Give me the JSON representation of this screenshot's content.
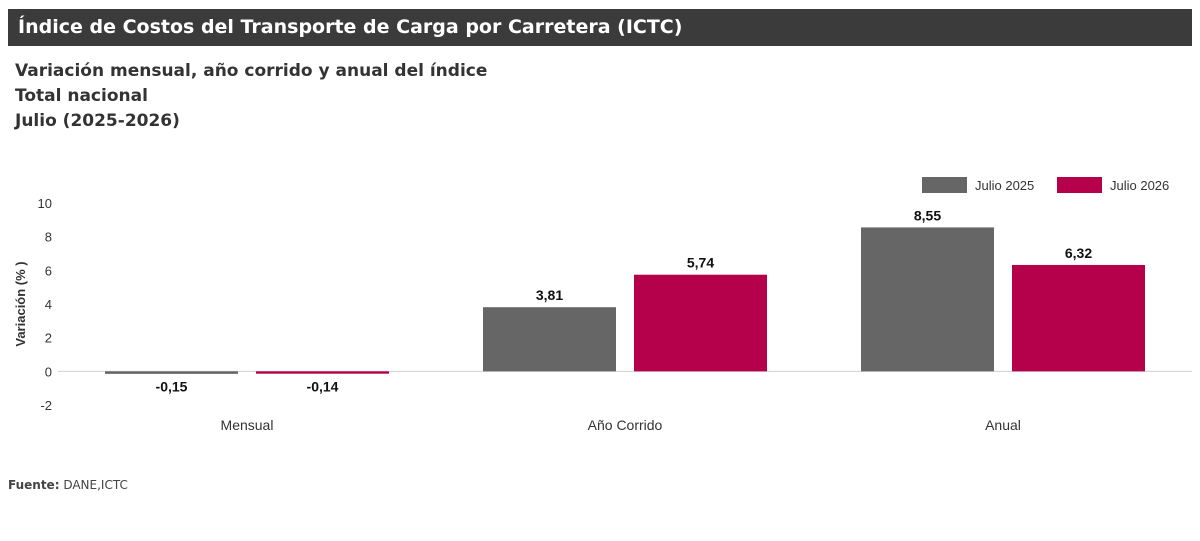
{
  "header": {
    "title": "Índice de Costos del Transporte de Carga por Carretera (ICTC)",
    "subtitle_lines": [
      "Variación mensual, año corrido y anual del índice",
      "Total nacional",
      "Julio (2025-2026)"
    ]
  },
  "chart_data": {
    "type": "bar",
    "categories": [
      "Mensual",
      "Año Corrido",
      "Anual"
    ],
    "series": [
      {
        "name": "Julio  2025",
        "color": "#666666",
        "values": [
          -0.15,
          3.81,
          8.55
        ]
      },
      {
        "name": "Julio  2026",
        "color": "#b5004b",
        "values": [
          -0.14,
          5.74,
          6.32
        ]
      }
    ],
    "data_labels": [
      [
        "-0,15",
        "3,81",
        "8,55"
      ],
      [
        "-0,14",
        "5,74",
        "6,32"
      ]
    ],
    "ylabel": "Variación (% )",
    "ylim": [
      -2,
      10
    ],
    "yticks": [
      -2,
      0,
      2,
      4,
      6,
      8,
      10
    ],
    "legend_position": "top-right",
    "grid": false
  },
  "footer": {
    "source_label": "Fuente:",
    "source_text": " DANE,ICTC"
  }
}
